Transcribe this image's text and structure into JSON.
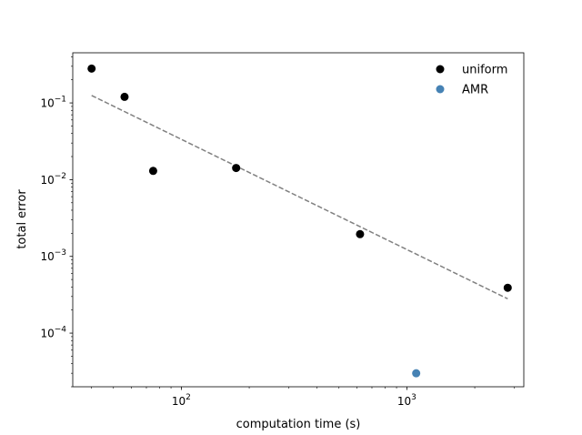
{
  "chart_data": {
    "type": "scatter",
    "title": "",
    "xlabel": "computation time  (s)",
    "ylabel": "total error",
    "xscale": "log",
    "yscale": "log",
    "xlim": [
      33,
      3300
    ],
    "ylim": [
      2e-05,
      0.45
    ],
    "grid": false,
    "legend_position": "top-right",
    "x_major_ticks": [
      {
        "value": 100,
        "base": "10",
        "exp": "2"
      },
      {
        "value": 1000,
        "base": "10",
        "exp": "3"
      }
    ],
    "y_major_ticks": [
      {
        "value": 0.1,
        "base": "10",
        "exp": "−1"
      },
      {
        "value": 0.01,
        "base": "10",
        "exp": "−2"
      },
      {
        "value": 0.001,
        "base": "10",
        "exp": "−3"
      },
      {
        "value": 0.0001,
        "base": "10",
        "exp": "−4"
      }
    ],
    "series": [
      {
        "name": "uniform",
        "color": "#000000",
        "marker": "circle",
        "points": [
          {
            "x": 40,
            "y": 0.28
          },
          {
            "x": 56,
            "y": 0.12
          },
          {
            "x": 75,
            "y": 0.013
          },
          {
            "x": 175,
            "y": 0.0142
          },
          {
            "x": 620,
            "y": 0.00195
          },
          {
            "x": 2800,
            "y": 0.00039
          }
        ]
      },
      {
        "name": "AMR",
        "color": "#4682b4",
        "marker": "circle",
        "points": [
          {
            "x": 1100,
            "y": 3e-05
          }
        ]
      }
    ],
    "fit_line": {
      "style": "dashed",
      "color": "#808080",
      "points": [
        {
          "x": 40,
          "y": 0.125
        },
        {
          "x": 2800,
          "y": 0.00028
        }
      ]
    }
  }
}
